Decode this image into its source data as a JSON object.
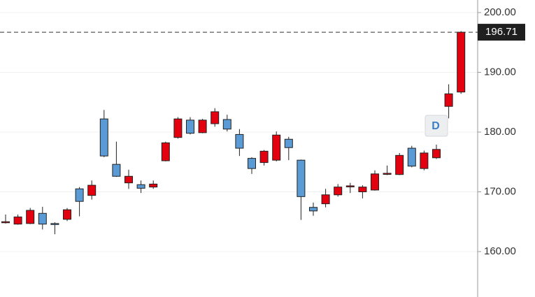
{
  "chart_data": {
    "type": "candlestick",
    "open": [
      164.9,
      164.6,
      164.7,
      166.4,
      164.7,
      165.4,
      170.5,
      169.4,
      182.2,
      174.6,
      171.5,
      171.2,
      170.8,
      175.2,
      179.1,
      182.0,
      179.9,
      181.4,
      182.1,
      179.6,
      175.6,
      174.9,
      175.3,
      178.8,
      175.3,
      167.4,
      168.0,
      169.5,
      170.9,
      170.0,
      170.3,
      173.0,
      172.9,
      177.3,
      173.9,
      175.7,
      184.3,
      186.7
    ],
    "high": [
      166.2,
      166.2,
      167.3,
      167.5,
      164.9,
      167.3,
      170.8,
      171.9,
      183.7,
      178.4,
      173.7,
      171.9,
      171.9,
      178.4,
      182.5,
      182.5,
      182.2,
      184.0,
      182.9,
      180.5,
      175.8,
      177.0,
      180.1,
      179.2,
      175.4,
      168.2,
      170.5,
      171.3,
      171.5,
      171.1,
      173.6,
      174.4,
      176.5,
      177.7,
      176.9,
      177.9,
      188.0,
      196.9
    ],
    "low": [
      164.7,
      164.5,
      164.6,
      163.7,
      162.9,
      165.1,
      165.9,
      168.7,
      175.8,
      172.5,
      170.5,
      169.8,
      170.5,
      175.1,
      178.9,
      179.6,
      179.8,
      180.9,
      180.1,
      176.0,
      173.0,
      174.4,
      175.1,
      175.3,
      165.3,
      166.0,
      167.4,
      169.2,
      169.8,
      168.9,
      170.2,
      172.8,
      172.8,
      174.1,
      173.6,
      175.5,
      182.3,
      186.4
    ],
    "close": [
      165.0,
      165.8,
      166.9,
      164.6,
      164.6,
      167.0,
      168.4,
      171.1,
      176.0,
      172.6,
      172.6,
      170.6,
      171.3,
      178.2,
      182.2,
      179.8,
      182.0,
      183.4,
      180.5,
      177.3,
      173.9,
      176.8,
      179.5,
      177.4,
      169.2,
      166.8,
      169.5,
      170.8,
      171.0,
      170.8,
      173.0,
      173.1,
      176.1,
      174.3,
      176.5,
      177.1,
      186.4,
      196.71
    ],
    "up_color": "#e3000f",
    "down_color": "#5b9bd5",
    "last_price": 196.71,
    "annotation": "D",
    "ylim": [
      152.4,
      202.1
    ],
    "yticks": [
      {
        "value": 160,
        "label": "160.00"
      },
      {
        "value": 170,
        "label": "170.00"
      },
      {
        "value": 180,
        "label": "180.00"
      },
      {
        "value": 190,
        "label": "190.00"
      },
      {
        "value": 200,
        "label": "200.00"
      }
    ],
    "grid": true
  }
}
